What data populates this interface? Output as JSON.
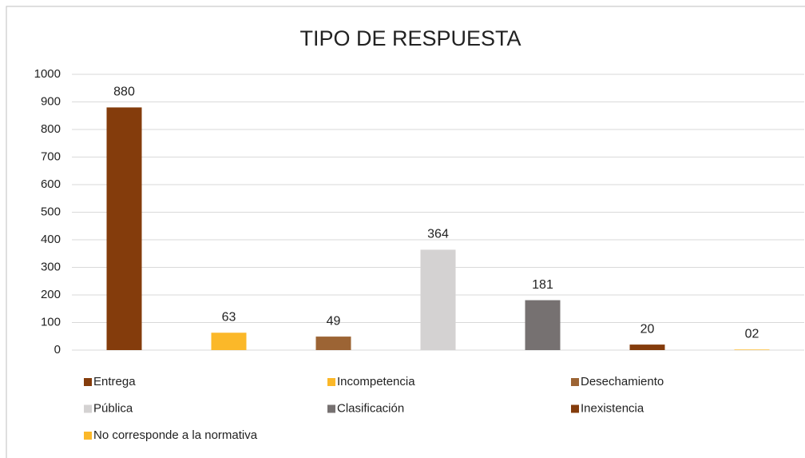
{
  "chart_data": {
    "type": "bar",
    "title": "TIPO DE RESPUESTA",
    "categories": [
      "Entrega",
      "Incompetencia",
      "Desechamiento",
      "Pública",
      "Clasificación",
      "Inexistencia",
      "No corresponde a la normativa"
    ],
    "values": [
      880,
      63,
      49,
      364,
      181,
      20,
      2
    ],
    "value_labels": [
      "880",
      "63",
      "49",
      "364",
      "181",
      "20",
      "02"
    ],
    "colors": [
      "#843c0c",
      "#fbb829",
      "#9c6434",
      "#d4d2d2",
      "#767171",
      "#843c0c",
      "#fbb829"
    ],
    "ylim": [
      0,
      1000
    ],
    "yticks": [
      0,
      100,
      200,
      300,
      400,
      500,
      600,
      700,
      800,
      900,
      1000
    ],
    "grid": true,
    "legend": "bottom"
  }
}
